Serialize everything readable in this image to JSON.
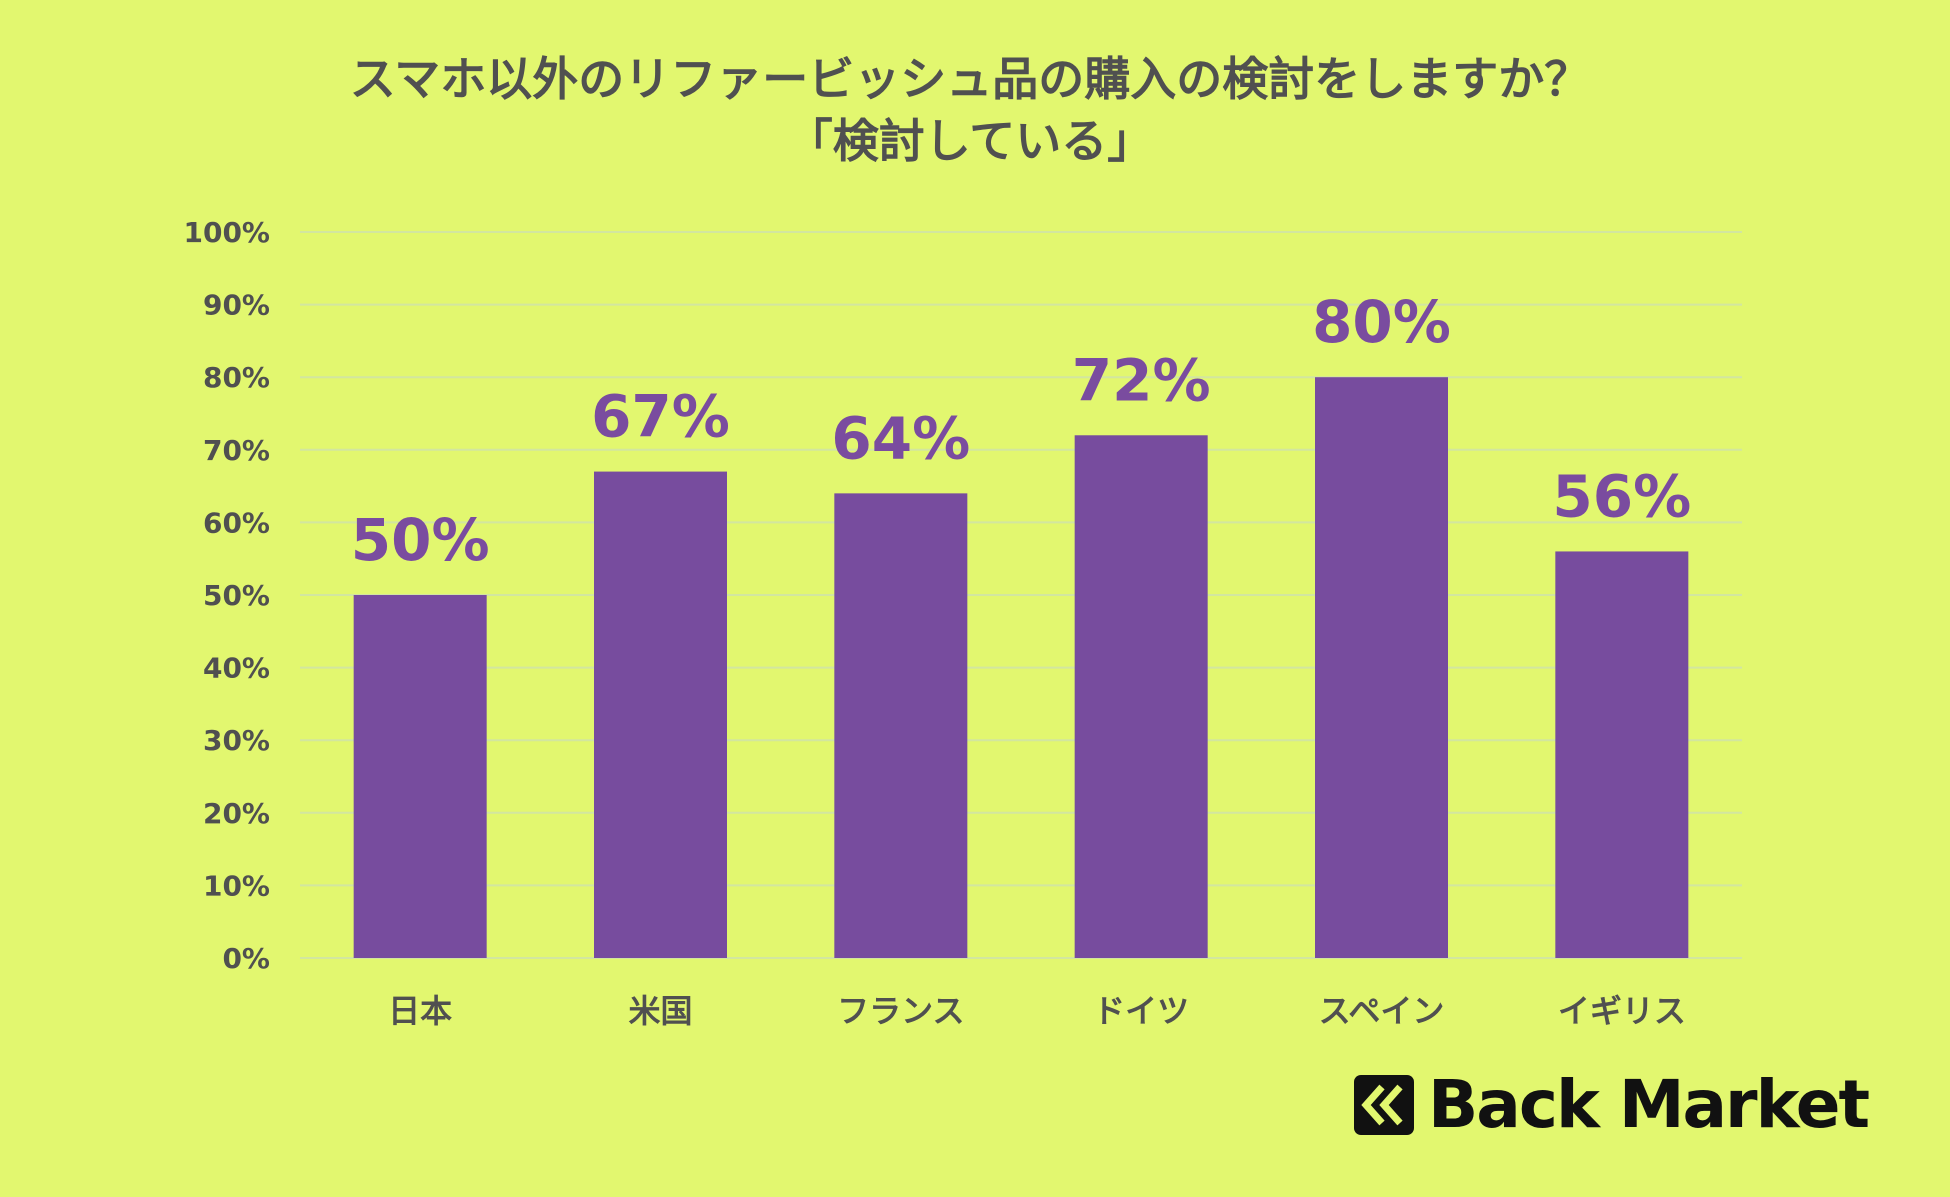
{
  "chart_data": {
    "type": "bar",
    "title": "スマホ以外のリファービッシュ品の購入の検討をしますか？",
    "subtitle": "「検討している」",
    "categories": [
      "日本",
      "米国",
      "フランス",
      "ドイツ",
      "スペイン",
      "イギリス"
    ],
    "values": [
      50,
      67,
      64,
      72,
      80,
      56
    ],
    "data_labels": [
      "50%",
      "67%",
      "64%",
      "72%",
      "80%",
      "56%"
    ],
    "yticks": [
      "0%",
      "10%",
      "20%",
      "30%",
      "40%",
      "50%",
      "60%",
      "70%",
      "80%",
      "90%",
      "100%"
    ],
    "ylim": [
      0,
      100
    ],
    "xlabel": "",
    "ylabel": "",
    "grid": true,
    "bar_color": "#774c9e",
    "background_color": "#e2f76f",
    "grid_color": "#d2e6a0",
    "text_color": "#505050"
  },
  "brand": {
    "name": "Back Market",
    "icon": "back-market-chevrons-icon"
  }
}
